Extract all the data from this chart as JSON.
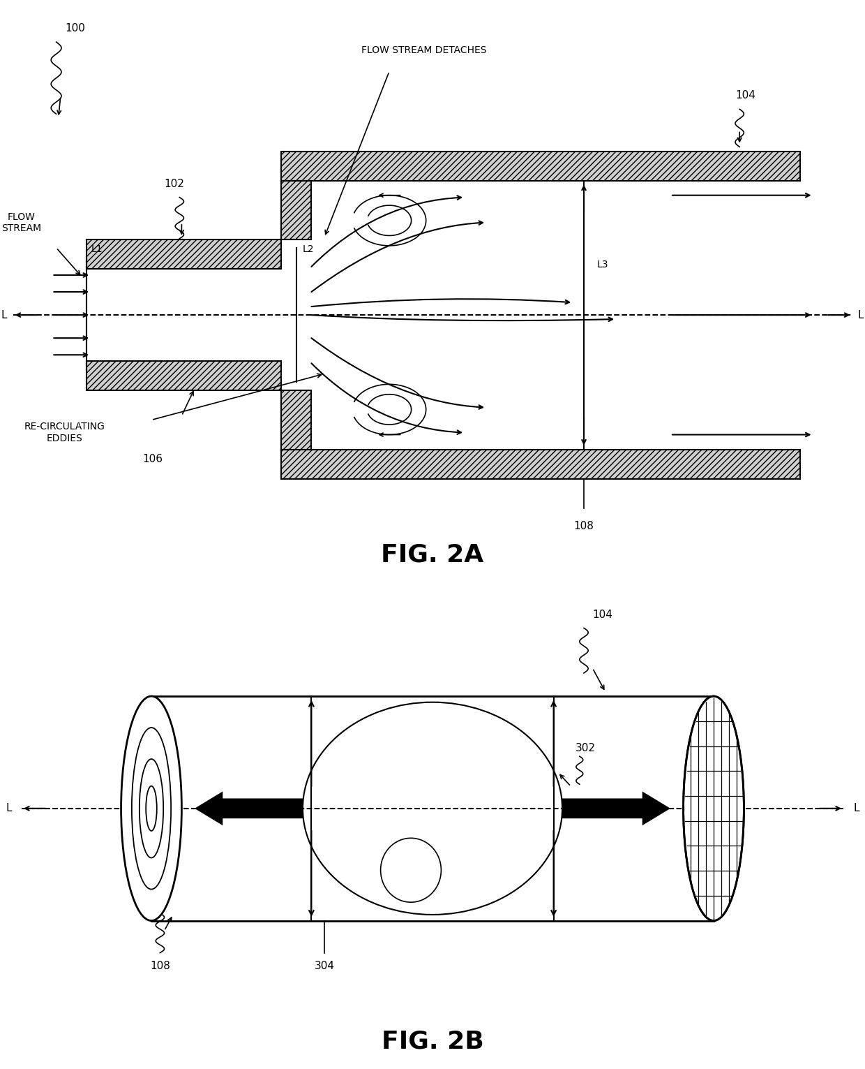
{
  "fig_width": 12.4,
  "fig_height": 15.31,
  "bg_color": "#ffffff",
  "line_color": "#000000",
  "fig2a_title": "FIG. 2A",
  "fig2b_title": "FIG. 2B",
  "labels": {
    "flow_stream": "FLOW\nSTREAM",
    "flow_stream_detaches": "FLOW STREAM DETACHES",
    "re_circulating": "RE-CIRCULATING\nEDDIES",
    "n100": "100",
    "n102": "102",
    "n104": "104",
    "n106": "106",
    "n108": "108",
    "L1": "L1",
    "L2": "L2",
    "L3": "L3",
    "L": "L",
    "n302": "302",
    "n304": "304",
    "n108b": "108",
    "n104b": "104"
  }
}
